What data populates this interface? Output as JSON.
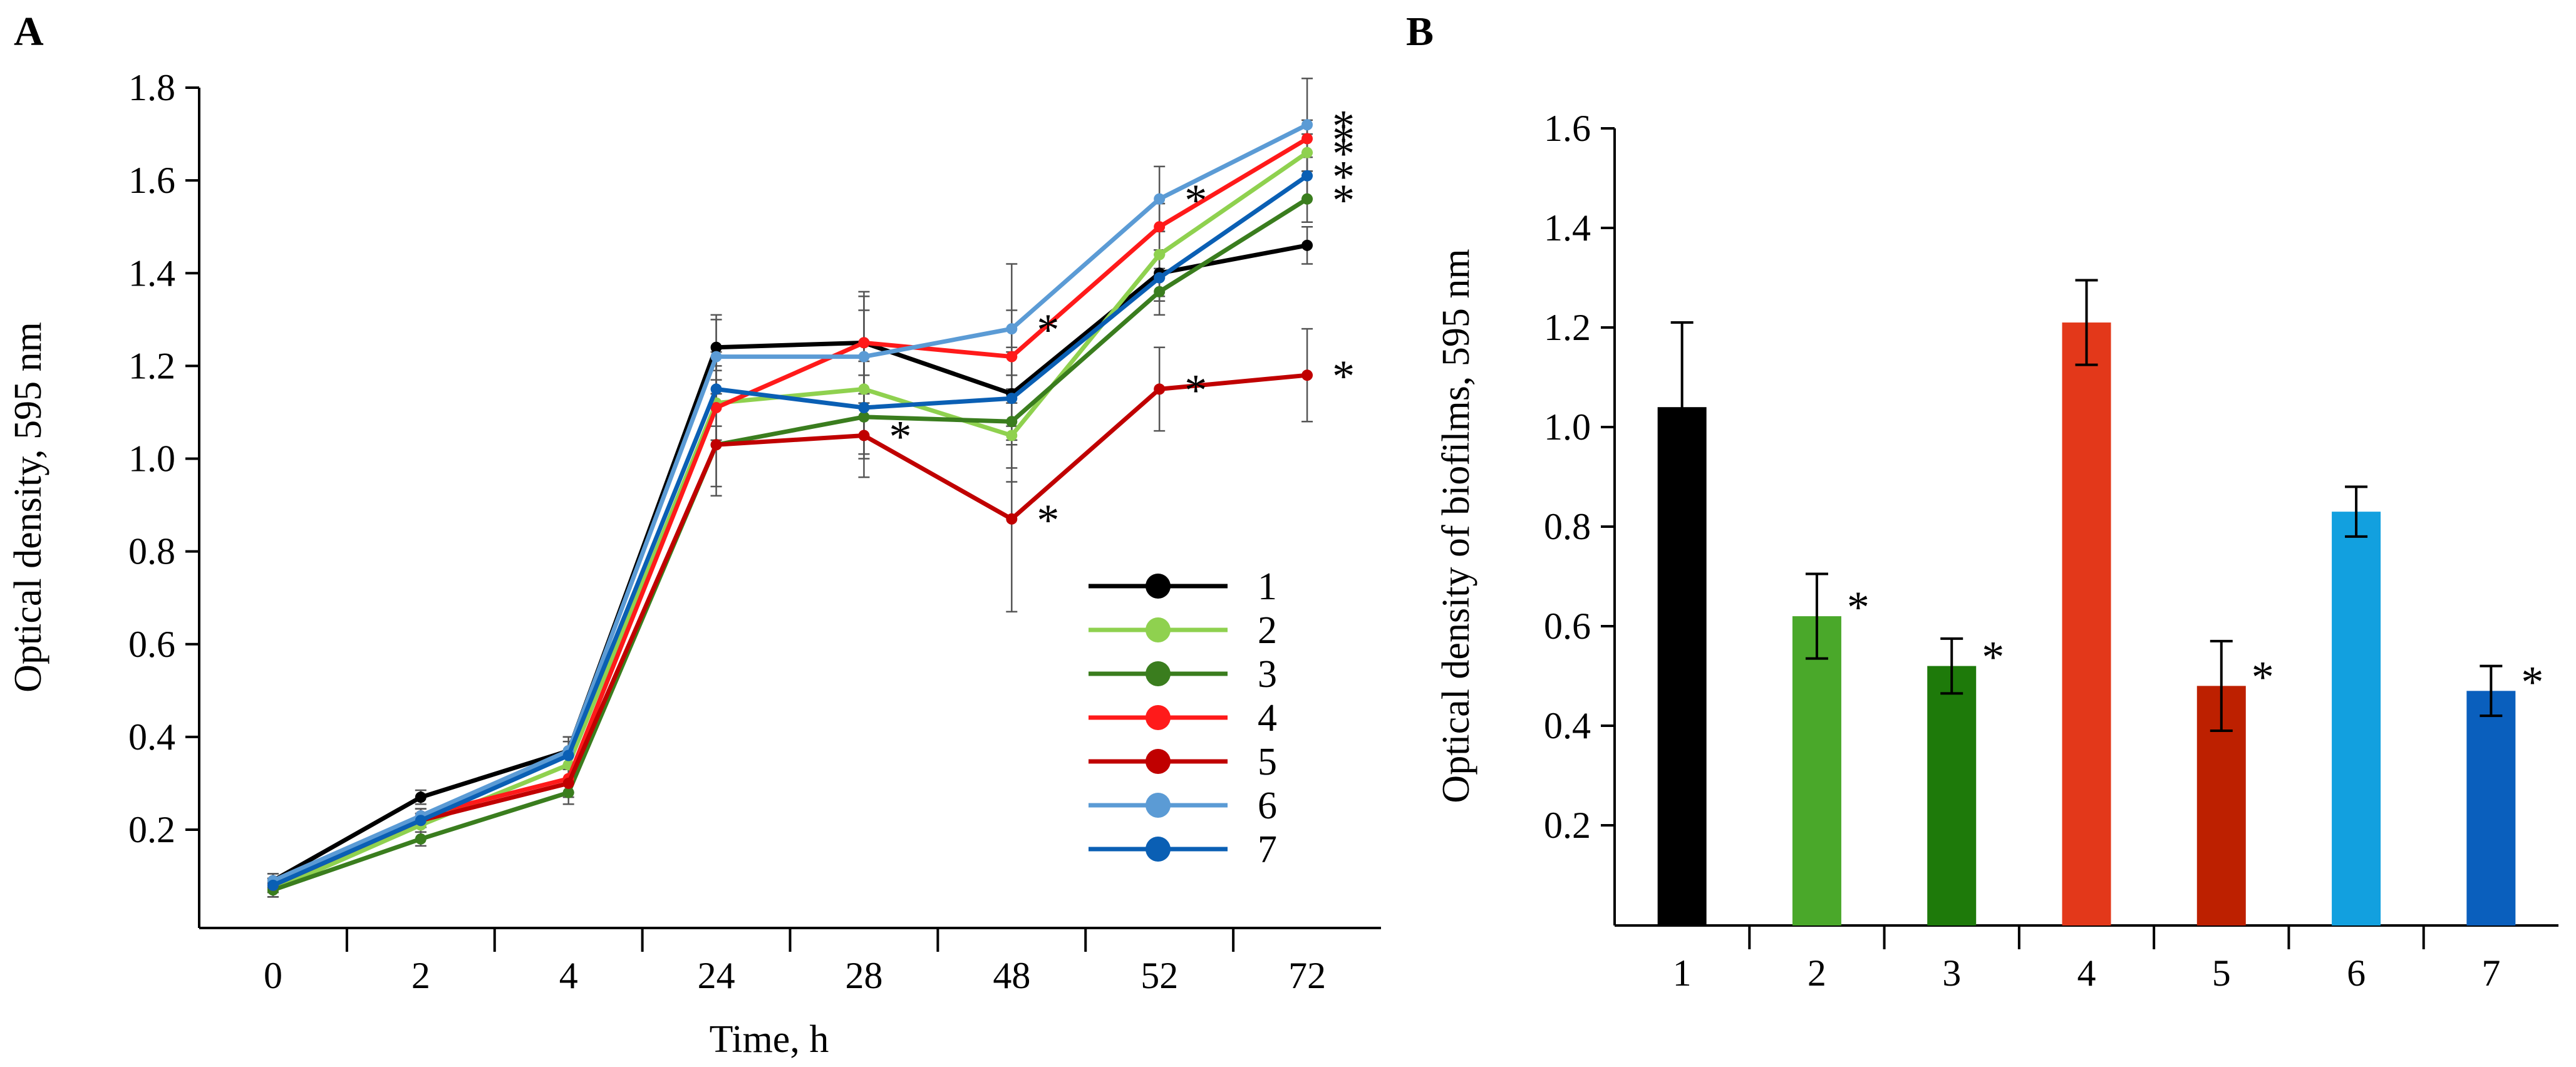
{
  "panels": {
    "a": {
      "letter": "A"
    },
    "b": {
      "letter": "B"
    }
  },
  "chart_data": [
    {
      "type": "line",
      "panel": "A",
      "xlabel": "Time, h",
      "ylabel": "Optical density, 595 nm",
      "categories": [
        "0",
        "2",
        "4",
        "24",
        "28",
        "48",
        "52",
        "72"
      ],
      "ylim": [
        0,
        1.8
      ],
      "yticks": [
        0.2,
        0.4,
        0.6,
        0.8,
        1.0,
        1.2,
        1.4,
        1.6,
        1.8
      ],
      "ytick_labels": [
        "0.2",
        "0.4",
        "0.6",
        "0.8",
        "1.0",
        "1.2",
        "1.4",
        "1.6",
        "1.8"
      ],
      "legend_position": "center-right",
      "significance_marker": "*",
      "series": [
        {
          "name": "1",
          "color": "#000000",
          "values": [
            0.09,
            0.27,
            0.37,
            1.24,
            1.25,
            1.14,
            1.4,
            1.46
          ],
          "errors": [
            0.015,
            0.015,
            0.03,
            0.07,
            0.11,
            0.1,
            0.05,
            0.04
          ],
          "stars": []
        },
        {
          "name": "2",
          "color": "#8fd14f",
          "values": [
            0.07,
            0.21,
            0.34,
            1.12,
            1.15,
            1.05,
            1.44,
            1.66
          ],
          "errors": [
            0.015,
            0.015,
            0.03,
            0.08,
            0.1,
            0.1,
            0.05,
            0.04
          ],
          "stars": [
            7
          ]
        },
        {
          "name": "3",
          "color": "#3a7d1e",
          "values": [
            0.07,
            0.18,
            0.28,
            1.03,
            1.09,
            1.08,
            1.36,
            1.56
          ],
          "errors": [
            0.015,
            0.015,
            0.025,
            0.09,
            0.09,
            0.1,
            0.05,
            0.05
          ],
          "stars": [
            7
          ]
        },
        {
          "name": "4",
          "color": "#ff1a1a",
          "values": [
            0.08,
            0.23,
            0.31,
            1.11,
            1.25,
            1.22,
            1.5,
            1.69
          ],
          "errors": [
            0.015,
            0.015,
            0.03,
            0.08,
            0.1,
            0.1,
            0.05,
            0.04
          ],
          "stars": [
            7
          ]
        },
        {
          "name": "5",
          "color": "#c00000",
          "values": [
            0.08,
            0.22,
            0.3,
            1.03,
            1.05,
            0.87,
            1.15,
            1.18
          ],
          "errors": [
            0.015,
            0.015,
            0.03,
            0.11,
            0.09,
            0.2,
            0.09,
            0.1
          ],
          "stars": [
            4,
            5,
            6,
            7
          ]
        },
        {
          "name": "6",
          "color": "#5b9bd5",
          "values": [
            0.09,
            0.23,
            0.37,
            1.22,
            1.22,
            1.28,
            1.56,
            1.72
          ],
          "errors": [
            0.015,
            0.015,
            0.03,
            0.08,
            0.1,
            0.14,
            0.07,
            0.1
          ],
          "stars": [
            5,
            6,
            7
          ]
        },
        {
          "name": "7",
          "color": "#0a5fb4",
          "values": [
            0.08,
            0.22,
            0.36,
            1.15,
            1.11,
            1.13,
            1.39,
            1.61
          ],
          "errors": [
            0.015,
            0.015,
            0.03,
            0.08,
            0.1,
            0.1,
            0.05,
            0.05
          ],
          "stars": [
            7
          ]
        }
      ]
    },
    {
      "type": "bar",
      "panel": "B",
      "xlabel": "",
      "ylabel": "Optical density of biofilms, 595 nm",
      "categories": [
        "1",
        "2",
        "3",
        "4",
        "5",
        "6",
        "7"
      ],
      "values": [
        1.04,
        0.62,
        0.52,
        1.21,
        0.48,
        0.83,
        0.47
      ],
      "errors": [
        0.17,
        0.085,
        0.055,
        0.085,
        0.09,
        0.05,
        0.05
      ],
      "colors": [
        "#000000",
        "#4aa82a",
        "#1e7a0a",
        "#e3381a",
        "#bd2000",
        "#12a0df",
        "#0a5fbd"
      ],
      "stars": [
        false,
        true,
        true,
        false,
        true,
        false,
        true
      ],
      "ylim": [
        0,
        1.6
      ],
      "yticks": [
        0.2,
        0.4,
        0.6,
        0.8,
        1.0,
        1.2,
        1.4,
        1.6
      ],
      "ytick_labels": [
        "0.2",
        "0.4",
        "0.6",
        "0.8",
        "1.0",
        "1.2",
        "1.4",
        "1.6"
      ],
      "significance_marker": "*"
    }
  ]
}
